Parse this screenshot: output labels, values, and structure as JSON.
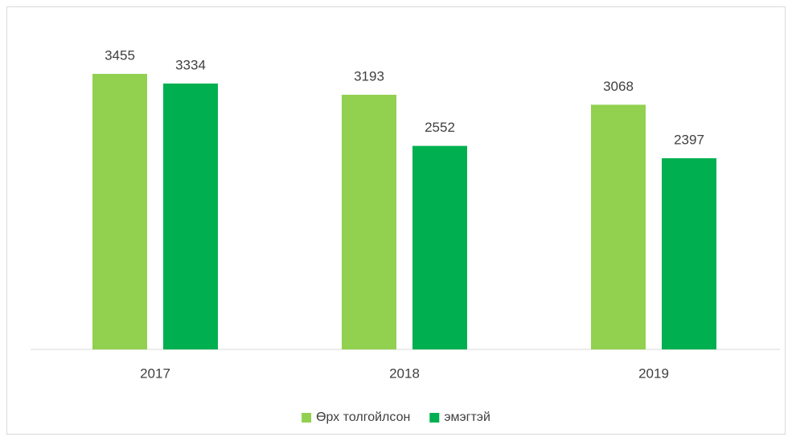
{
  "chart_data": {
    "type": "bar",
    "categories": [
      "2017",
      "2018",
      "2019"
    ],
    "series": [
      {
        "name": "Өрх толгойлсон",
        "color": "#92d050",
        "values": [
          3455,
          3193,
          3068
        ]
      },
      {
        "name": "эмэгтэй",
        "color": "#00b050",
        "values": [
          3334,
          2552,
          2397
        ]
      }
    ],
    "ylim": [
      0,
      3500
    ],
    "legend": "bottom"
  }
}
